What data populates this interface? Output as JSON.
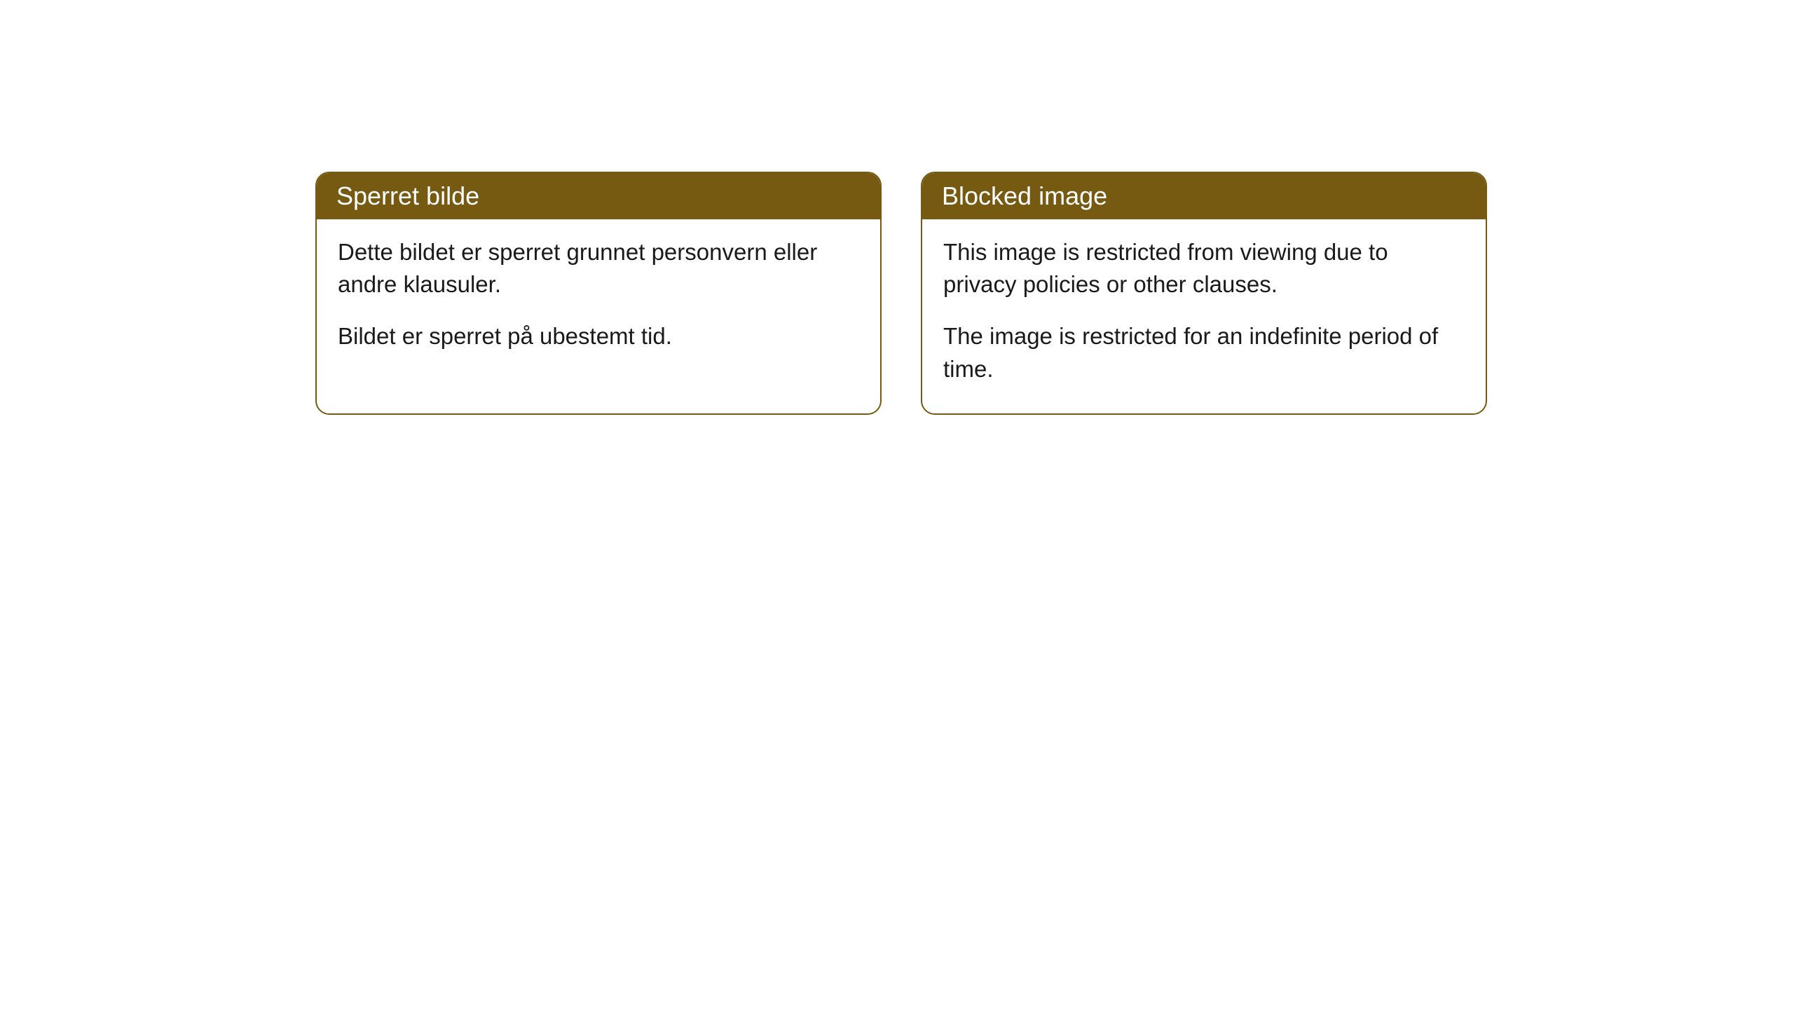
{
  "cards": [
    {
      "header": "Sperret bilde",
      "paragraph1": "Dette bildet er sperret grunnet personvern eller andre klausuler.",
      "paragraph2": "Bildet er sperret på ubestemt tid."
    },
    {
      "header": "Blocked image",
      "paragraph1": "This image is restricted from viewing due to privacy policies or other clauses.",
      "paragraph2": "The image is restricted for an indefinite period of time."
    }
  ],
  "styling": {
    "header_bg_color": "#765a12",
    "header_text_color": "#ffffff",
    "border_color": "#765a12",
    "body_bg_color": "#ffffff",
    "body_text_color": "#1a1a1a",
    "border_radius": 20,
    "header_fontsize": 36,
    "body_fontsize": 33
  }
}
